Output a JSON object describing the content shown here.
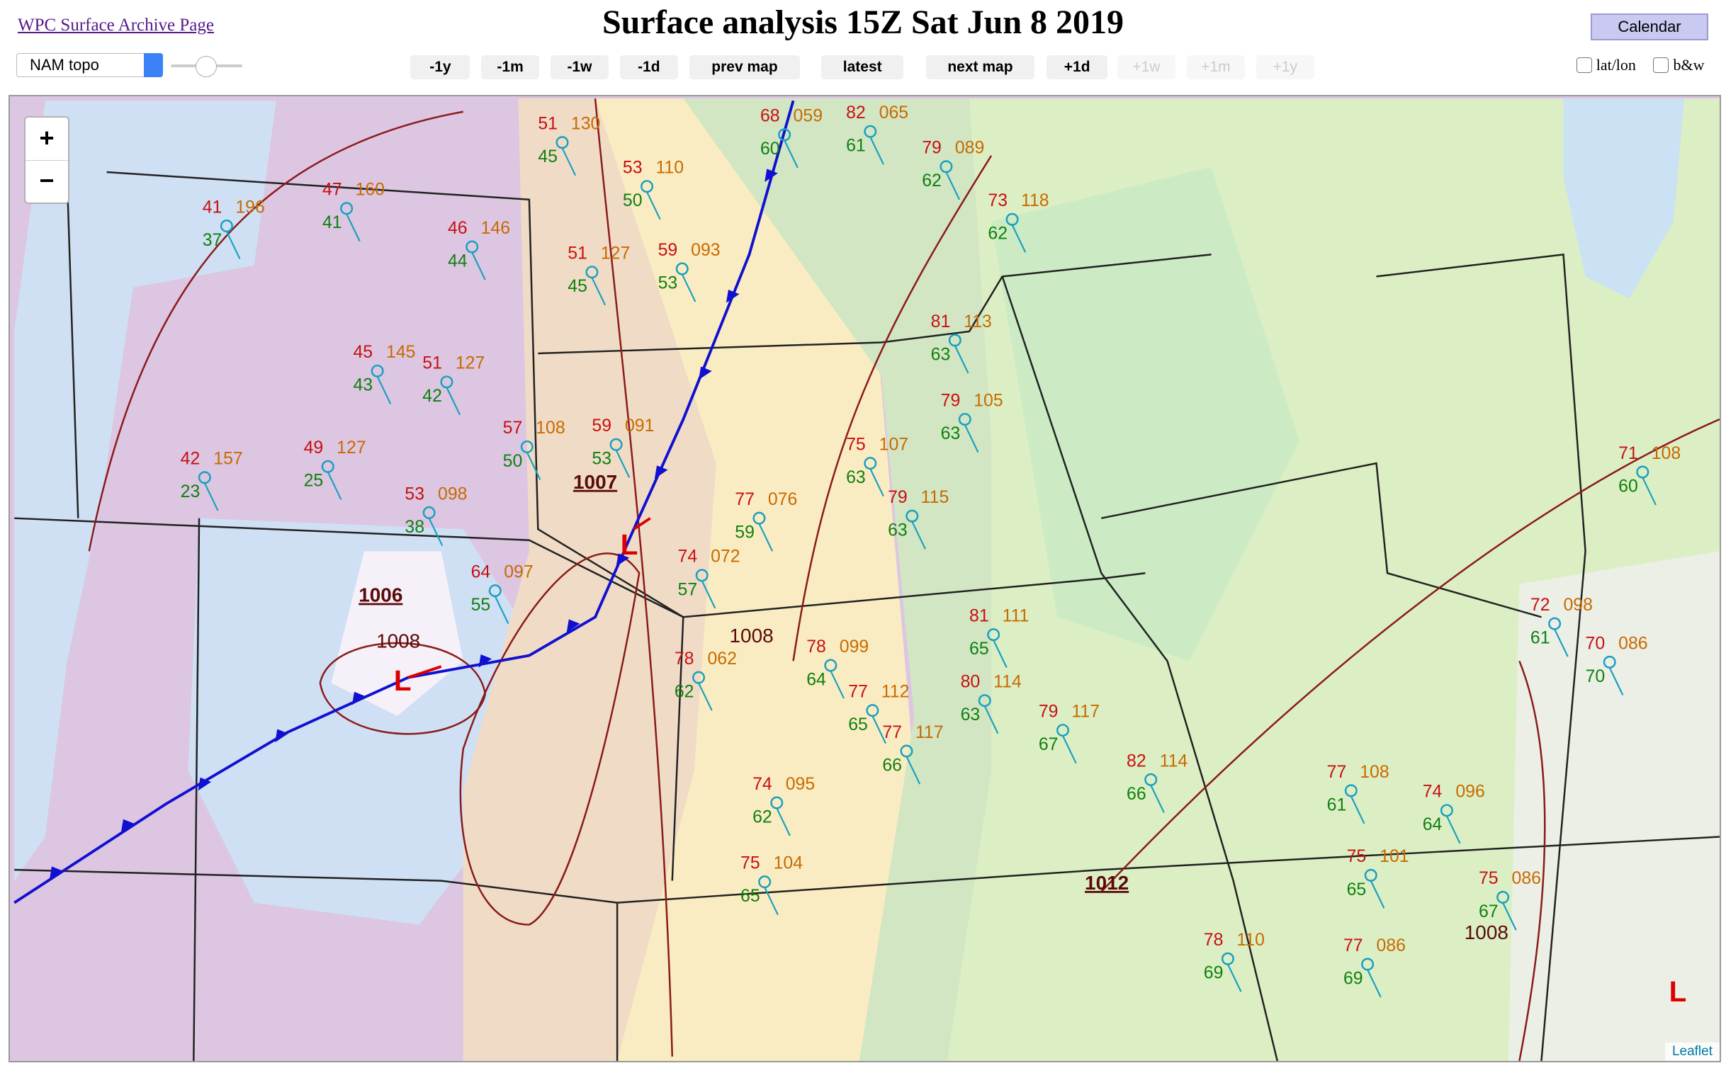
{
  "header": {
    "archive_link": "WPC Surface Archive Page",
    "title": "Surface analysis 15Z Sat Jun 8 2019",
    "calendar_button": "Calendar"
  },
  "controls": {
    "map_select": "NAM topo",
    "nav_buttons": [
      {
        "label": "-1y",
        "enabled": true
      },
      {
        "label": "-1m",
        "enabled": true
      },
      {
        "label": "-1w",
        "enabled": true
      },
      {
        "label": "-1d",
        "enabled": true
      },
      {
        "label": "prev map",
        "enabled": true
      },
      {
        "label": "latest",
        "enabled": true
      },
      {
        "label": "next map",
        "enabled": true
      },
      {
        "label": "+1d",
        "enabled": true
      },
      {
        "label": "+1w",
        "enabled": false
      },
      {
        "label": "+1m",
        "enabled": false
      },
      {
        "label": "+1y",
        "enabled": false
      }
    ],
    "checkboxes": [
      "lat/lon",
      "b&w"
    ]
  },
  "map": {
    "zoom_in": "+",
    "zoom_out": "−",
    "attribution": "Leaflet",
    "isobar_labels": [
      "1007",
      "1006",
      "1008",
      "1008",
      "1012",
      "1008"
    ],
    "lows": [
      "L",
      "L",
      "L"
    ],
    "stations": [
      {
        "temp": "51",
        "pressure": "130",
        "dew": "45"
      },
      {
        "temp": "53",
        "pressure": "110",
        "dew": "50"
      },
      {
        "temp": "51",
        "pressure": "127",
        "dew": "45"
      },
      {
        "temp": "59",
        "pressure": "093",
        "dew": "53"
      },
      {
        "temp": "41",
        "pressure": "196",
        "dew": "37"
      },
      {
        "temp": "47",
        "pressure": "160",
        "dew": "41"
      },
      {
        "temp": "46",
        "pressure": "146",
        "dew": "44"
      },
      {
        "temp": "45",
        "pressure": "145",
        "dew": "43"
      },
      {
        "temp": "51",
        "pressure": "127",
        "dew": "42"
      },
      {
        "temp": "49",
        "pressure": "127",
        "dew": "25"
      },
      {
        "temp": "42",
        "pressure": "157",
        "dew": "23"
      },
      {
        "temp": "53",
        "pressure": "098",
        "dew": "38"
      },
      {
        "temp": "57",
        "pressure": "108",
        "dew": "50"
      },
      {
        "temp": "59",
        "pressure": "091",
        "dew": "53"
      },
      {
        "temp": "64",
        "pressure": "097",
        "dew": "55"
      },
      {
        "temp": "68",
        "pressure": "059",
        "dew": "60"
      },
      {
        "temp": "82",
        "pressure": "065",
        "dew": "61"
      },
      {
        "temp": "79",
        "pressure": "089",
        "dew": "62"
      },
      {
        "temp": "73",
        "pressure": "118",
        "dew": "62"
      },
      {
        "temp": "81",
        "pressure": "113",
        "dew": "63"
      },
      {
        "temp": "79",
        "pressure": "105",
        "dew": "63"
      },
      {
        "temp": "75",
        "pressure": "107",
        "dew": "63"
      },
      {
        "temp": "79",
        "pressure": "115",
        "dew": "63"
      },
      {
        "temp": "77",
        "pressure": "076",
        "dew": "59"
      },
      {
        "temp": "74",
        "pressure": "072",
        "dew": "57"
      },
      {
        "temp": "78",
        "pressure": "099",
        "dew": "64"
      },
      {
        "temp": "78",
        "pressure": "062",
        "dew": "62"
      },
      {
        "temp": "77",
        "pressure": "112",
        "dew": "65"
      },
      {
        "temp": "77",
        "pressure": "117",
        "dew": "66"
      },
      {
        "temp": "74",
        "pressure": "095",
        "dew": "62"
      },
      {
        "temp": "75",
        "pressure": "104",
        "dew": "65"
      },
      {
        "temp": "81",
        "pressure": "111",
        "dew": "65"
      },
      {
        "temp": "80",
        "pressure": "114",
        "dew": "63"
      },
      {
        "temp": "79",
        "pressure": "117",
        "dew": "67"
      },
      {
        "temp": "82",
        "pressure": "114",
        "dew": "66"
      },
      {
        "temp": "77",
        "pressure": "108",
        "dew": "61"
      },
      {
        "temp": "78",
        "pressure": "110",
        "dew": "69"
      },
      {
        "temp": "77",
        "pressure": "086",
        "dew": "69"
      },
      {
        "temp": "74",
        "pressure": "096",
        "dew": "64"
      },
      {
        "temp": "75",
        "pressure": "101",
        "dew": "65"
      },
      {
        "temp": "75",
        "pressure": "086",
        "dew": "67"
      },
      {
        "temp": "71",
        "pressure": "108",
        "dew": "60"
      },
      {
        "temp": "72",
        "pressure": "098",
        "dew": "61"
      },
      {
        "temp": "70",
        "pressure": "086",
        "dew": "70"
      }
    ]
  }
}
